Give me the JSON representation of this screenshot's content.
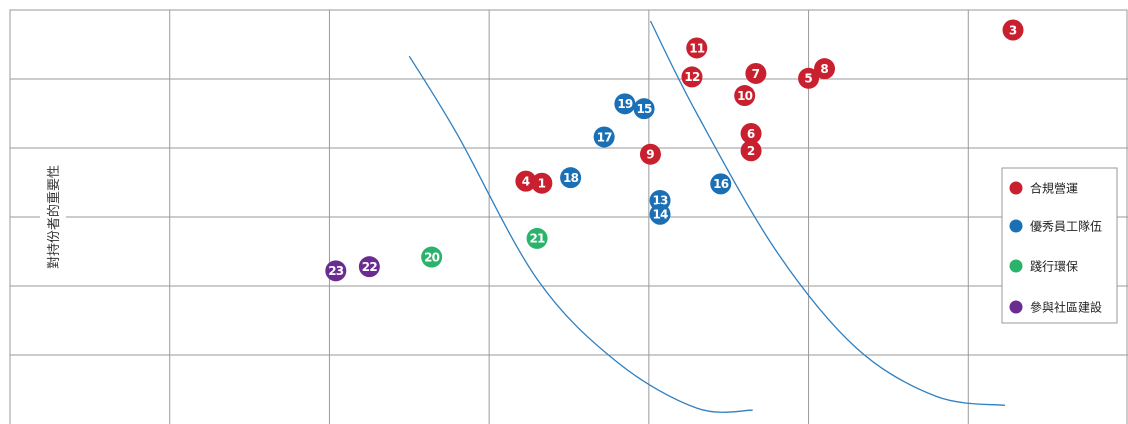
{
  "chart_data": {
    "type": "scatter",
    "ylabel": "對持份者的重要性",
    "xlabel": "",
    "title": "",
    "xlim": [
      0,
      7
    ],
    "ylim": [
      0,
      6
    ],
    "grid": true,
    "legend_position": "right",
    "series": [
      {
        "name": "合規營運",
        "color": "#c8202f",
        "points": [
          {
            "label": "1",
            "x": 3.33,
            "y": 3.49
          },
          {
            "label": "2",
            "x": 4.64,
            "y": 3.96
          },
          {
            "label": "3",
            "x": 6.28,
            "y": 5.71
          },
          {
            "label": "4",
            "x": 3.23,
            "y": 3.52
          },
          {
            "label": "5",
            "x": 5.0,
            "y": 5.01
          },
          {
            "label": "6",
            "x": 4.64,
            "y": 4.21
          },
          {
            "label": "7",
            "x": 4.67,
            "y": 5.08
          },
          {
            "label": "8",
            "x": 5.1,
            "y": 5.15
          },
          {
            "label": "9",
            "x": 4.01,
            "y": 3.91
          },
          {
            "label": "10",
            "x": 4.6,
            "y": 4.76
          },
          {
            "label": "11",
            "x": 4.3,
            "y": 5.45
          },
          {
            "label": "12",
            "x": 4.27,
            "y": 5.03
          }
        ]
      },
      {
        "name": "優秀員工隊伍",
        "color": "#1a6fb5",
        "points": [
          {
            "label": "13",
            "x": 4.07,
            "y": 3.24
          },
          {
            "label": "14",
            "x": 4.07,
            "y": 3.04
          },
          {
            "label": "15",
            "x": 3.97,
            "y": 4.57
          },
          {
            "label": "16",
            "x": 4.45,
            "y": 3.48
          },
          {
            "label": "17",
            "x": 3.72,
            "y": 4.16
          },
          {
            "label": "18",
            "x": 3.51,
            "y": 3.57
          },
          {
            "label": "19",
            "x": 3.85,
            "y": 4.64
          }
        ]
      },
      {
        "name": "踐行環保",
        "color": "#2bb36b",
        "points": [
          {
            "label": "20",
            "x": 2.64,
            "y": 2.42
          },
          {
            "label": "21",
            "x": 3.3,
            "y": 2.69
          }
        ]
      },
      {
        "name": "參與社區建設",
        "color": "#6a2c91",
        "points": [
          {
            "label": "22",
            "x": 2.25,
            "y": 2.28
          },
          {
            "label": "23",
            "x": 2.04,
            "y": 2.22
          }
        ]
      }
    ],
    "curves": [
      {
        "points": [
          [
            2.5,
            5.33
          ],
          [
            2.8,
            4.2
          ],
          [
            3.3,
            2.1
          ],
          [
            3.8,
            0.9
          ],
          [
            4.3,
            0.23
          ],
          [
            4.65,
            0.2
          ]
        ]
      },
      {
        "points": [
          [
            4.01,
            5.84
          ],
          [
            4.3,
            4.5
          ],
          [
            4.8,
            2.5
          ],
          [
            5.3,
            1.1
          ],
          [
            5.8,
            0.4
          ],
          [
            6.23,
            0.27
          ]
        ]
      }
    ]
  }
}
